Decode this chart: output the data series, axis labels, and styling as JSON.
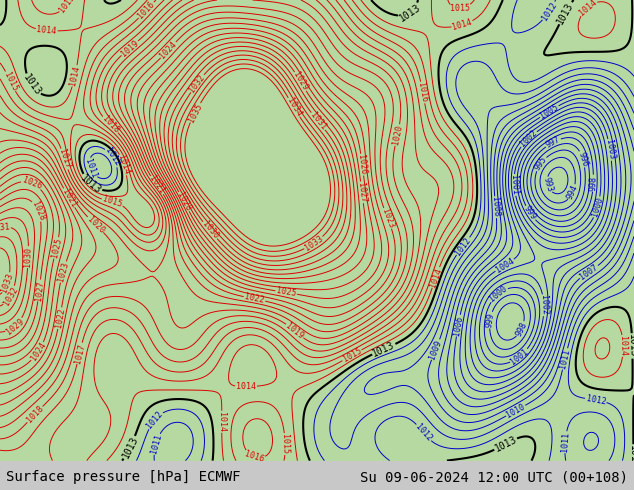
{
  "title_left": "Surface pressure [hPa] ECMWF",
  "title_right": "Su 09-06-2024 12:00 UTC (00+108)",
  "title_fontsize": 10,
  "bg_color": "#c8c8c8",
  "land_color": "#b5d9a0",
  "footer_bg": "#ffffff",
  "red_color": "#dd0000",
  "blue_color": "#0000cc",
  "black_color": "#000000",
  "map_xlim": [
    -138,
    -55
  ],
  "map_ylim": [
    18,
    68
  ]
}
